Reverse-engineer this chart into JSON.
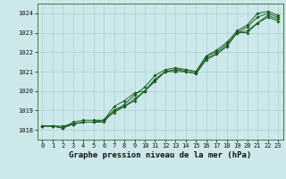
{
  "title": "Graphe pression niveau de la mer (hPa)",
  "background_color": "#cce8ea",
  "grid_color": "#aad0d4",
  "line_color": "#1a5e20",
  "hours": [
    0,
    1,
    2,
    3,
    4,
    5,
    6,
    7,
    8,
    9,
    10,
    11,
    12,
    13,
    14,
    15,
    16,
    17,
    18,
    19,
    20,
    21,
    22,
    23
  ],
  "line1": [
    1018.2,
    1018.2,
    1018.1,
    1018.3,
    1018.4,
    1018.4,
    1018.5,
    1018.9,
    1019.2,
    1019.5,
    1020.0,
    1020.5,
    1021.0,
    1021.0,
    1021.0,
    1020.9,
    1021.6,
    1021.9,
    1022.3,
    1023.0,
    1023.0,
    1023.5,
    1023.8,
    1023.6
  ],
  "line2": [
    1018.2,
    1018.2,
    1018.1,
    1018.3,
    1018.4,
    1018.4,
    1018.4,
    1019.0,
    1019.2,
    1019.6,
    1020.0,
    1020.6,
    1021.0,
    1021.1,
    1021.0,
    1020.9,
    1021.7,
    1021.9,
    1022.3,
    1023.0,
    1023.1,
    1023.5,
    1023.9,
    1023.7
  ],
  "line3": [
    1018.2,
    1018.2,
    1018.1,
    1018.4,
    1018.5,
    1018.5,
    1018.5,
    1019.2,
    1019.5,
    1019.9,
    1020.0,
    1020.6,
    1021.0,
    1021.1,
    1021.1,
    1021.0,
    1021.8,
    1022.0,
    1022.4,
    1023.0,
    1023.3,
    1023.8,
    1024.0,
    1023.8
  ],
  "line4": [
    1018.2,
    1018.2,
    1018.2,
    1018.3,
    1018.4,
    1018.4,
    1018.5,
    1019.0,
    1019.3,
    1019.8,
    1020.2,
    1020.8,
    1021.1,
    1021.2,
    1021.1,
    1021.0,
    1021.8,
    1022.1,
    1022.5,
    1023.1,
    1023.4,
    1024.0,
    1024.1,
    1023.9
  ],
  "ylim_min": 1017.5,
  "ylim_max": 1024.5,
  "yticks": [
    1018,
    1019,
    1020,
    1021,
    1022,
    1023,
    1024
  ],
  "title_fontsize": 6.5,
  "tick_fontsize": 5.0
}
